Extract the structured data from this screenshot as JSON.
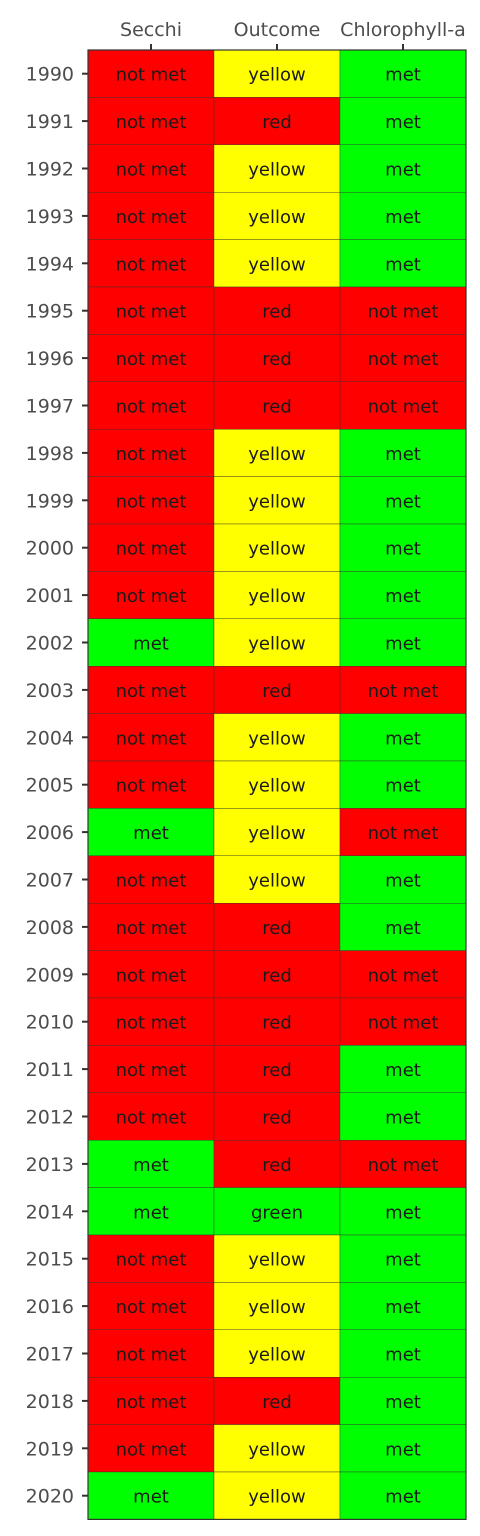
{
  "chart_data": {
    "type": "heatmap",
    "columns": [
      "Secchi",
      "Outcome",
      "Chlorophyll-a"
    ],
    "rows": [
      "1990",
      "1991",
      "1992",
      "1993",
      "1994",
      "1995",
      "1996",
      "1997",
      "1998",
      "1999",
      "2000",
      "2001",
      "2002",
      "2003",
      "2004",
      "2005",
      "2006",
      "2007",
      "2008",
      "2009",
      "2010",
      "2011",
      "2012",
      "2013",
      "2014",
      "2015",
      "2016",
      "2017",
      "2018",
      "2019",
      "2020"
    ],
    "cells": [
      [
        "not met",
        "yellow",
        "met"
      ],
      [
        "not met",
        "red",
        "met"
      ],
      [
        "not met",
        "yellow",
        "met"
      ],
      [
        "not met",
        "yellow",
        "met"
      ],
      [
        "not met",
        "yellow",
        "met"
      ],
      [
        "not met",
        "red",
        "not met"
      ],
      [
        "not met",
        "red",
        "not met"
      ],
      [
        "not met",
        "red",
        "not met"
      ],
      [
        "not met",
        "yellow",
        "met"
      ],
      [
        "not met",
        "yellow",
        "met"
      ],
      [
        "not met",
        "yellow",
        "met"
      ],
      [
        "not met",
        "yellow",
        "met"
      ],
      [
        "met",
        "yellow",
        "met"
      ],
      [
        "not met",
        "red",
        "not met"
      ],
      [
        "not met",
        "yellow",
        "met"
      ],
      [
        "not met",
        "yellow",
        "met"
      ],
      [
        "met",
        "yellow",
        "not met"
      ],
      [
        "not met",
        "yellow",
        "met"
      ],
      [
        "not met",
        "red",
        "met"
      ],
      [
        "not met",
        "red",
        "not met"
      ],
      [
        "not met",
        "red",
        "not met"
      ],
      [
        "not met",
        "red",
        "met"
      ],
      [
        "not met",
        "red",
        "met"
      ],
      [
        "met",
        "red",
        "not met"
      ],
      [
        "met",
        "green",
        "met"
      ],
      [
        "not met",
        "yellow",
        "met"
      ],
      [
        "not met",
        "yellow",
        "met"
      ],
      [
        "not met",
        "yellow",
        "met"
      ],
      [
        "not met",
        "red",
        "met"
      ],
      [
        "not met",
        "yellow",
        "met"
      ],
      [
        "met",
        "yellow",
        "met"
      ]
    ],
    "colors": {
      "not met": "#ff0000",
      "met": "#00ff00",
      "red": "#ff0000",
      "yellow": "#ffff00",
      "green": "#00ff00"
    },
    "x_axis_position": "top",
    "grid": false,
    "legend": "none"
  }
}
